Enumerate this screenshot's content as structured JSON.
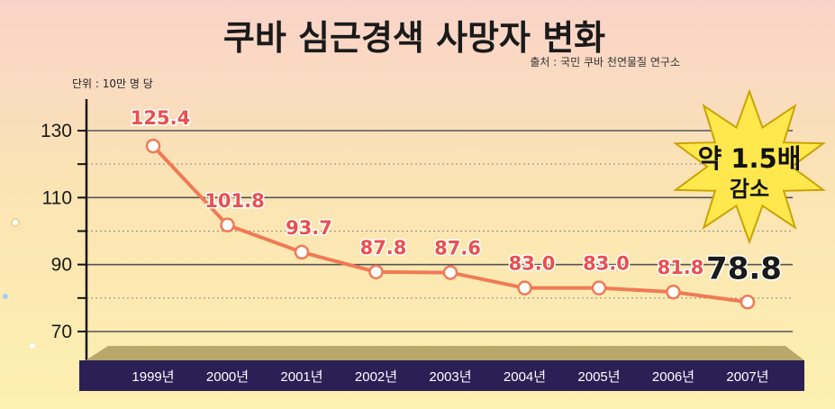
{
  "chart_data": {
    "type": "line",
    "title": "쿠바 심근경색 사망자 변화",
    "source": "출처 : 국민 쿠바 천연물질 연구소",
    "unit": "단위 : 10만 명 당",
    "categories": [
      "1999년",
      "2000년",
      "2001년",
      "2002년",
      "2003년",
      "2004년",
      "2005년",
      "2006년",
      "2007년"
    ],
    "values": [
      125.4,
      101.8,
      93.7,
      87.8,
      87.6,
      83.0,
      83.0,
      81.8,
      78.8
    ],
    "value_labels": [
      "125.4",
      "101.8",
      "93.7",
      "87.8",
      "87.6",
      "83.0",
      "83.0",
      "81.8",
      "78.8"
    ],
    "yticks": [
      "130",
      "110",
      "90",
      "70"
    ],
    "ylim": [
      64,
      134
    ],
    "grid": true,
    "badge": {
      "line1": "약 1.5배",
      "line2": "감소"
    },
    "colors": {
      "line": "#f07a55",
      "marker_fill": "#ffffff",
      "label": "#e85050",
      "axis_band": "#2b1f55",
      "floor": "#b8a86a",
      "badge": "#ffe84d"
    }
  }
}
